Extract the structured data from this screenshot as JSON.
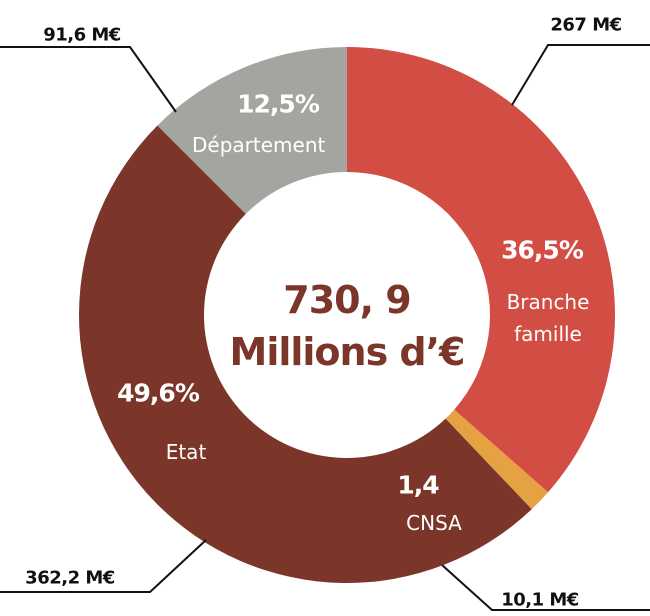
{
  "chart_data": {
    "type": "donut",
    "center_title": "730, 9",
    "center_subtitle": "Millions d’€",
    "series": [
      {
        "categories": [
          "Branche famille",
          "CNSA",
          "Etat",
          "Département"
        ],
        "values": [
          36.5,
          1.4,
          49.6,
          12.5
        ],
        "value_labels": [
          "36,5%",
          "1,4",
          "49,6%",
          "12,5%"
        ],
        "amounts": [
          267,
          10.1,
          362.2,
          91.6
        ],
        "amount_labels": [
          "267 M€",
          "10,1 M€",
          "362,2 M€",
          "91,6 M€"
        ],
        "colors": [
          "#d24d43",
          "#e5a142",
          "#7b3629",
          "#a4a4a1"
        ]
      }
    ]
  }
}
